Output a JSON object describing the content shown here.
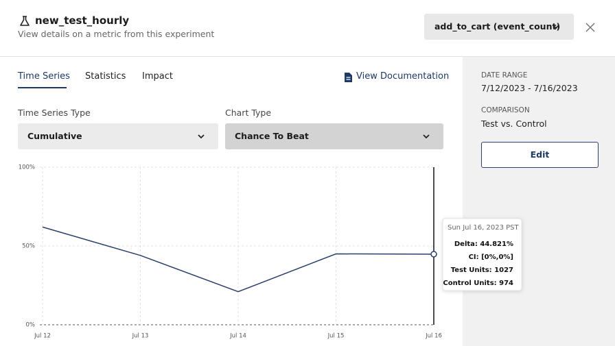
{
  "header": {
    "title": "new_test_hourly",
    "subtitle": "View details on a metric from this experiment",
    "metric_selector": "add_to_cart (event_count)"
  },
  "tabs": [
    "Time Series",
    "Statistics",
    "Impact"
  ],
  "documentation_link": "View Documentation",
  "controls": {
    "time_series_type": {
      "label": "Time Series Type",
      "value": "Cumulative"
    },
    "chart_type": {
      "label": "Chart Type",
      "value": "Chance To Beat"
    }
  },
  "chart_data": {
    "type": "line",
    "categories": [
      "Jul 12",
      "Jul 13",
      "Jul 14",
      "Jul 15",
      "Jul 16"
    ],
    "values": [
      62,
      44,
      21,
      45,
      44.8
    ],
    "color": "#2b3f6b",
    "ylim": [
      0,
      100
    ],
    "yticks": [
      {
        "value": 0,
        "label": "0%"
      },
      {
        "value": 50,
        "label": "50%"
      },
      {
        "value": 100,
        "label": "100%"
      }
    ],
    "grid": true
  },
  "tooltip": {
    "title": "Sun Jul 16, 2023 PST",
    "rows": [
      "Delta: 44.821%",
      "CI: [0%,0%]",
      "Test Units: 1027",
      "Control Units: 974"
    ]
  },
  "sidebar": {
    "date_range": {
      "label": "DATE RANGE",
      "value": "7/12/2023 - 7/16/2023"
    },
    "comparison": {
      "label": "COMPARISON",
      "value": "Test vs. Control"
    },
    "edit_button": "Edit"
  }
}
